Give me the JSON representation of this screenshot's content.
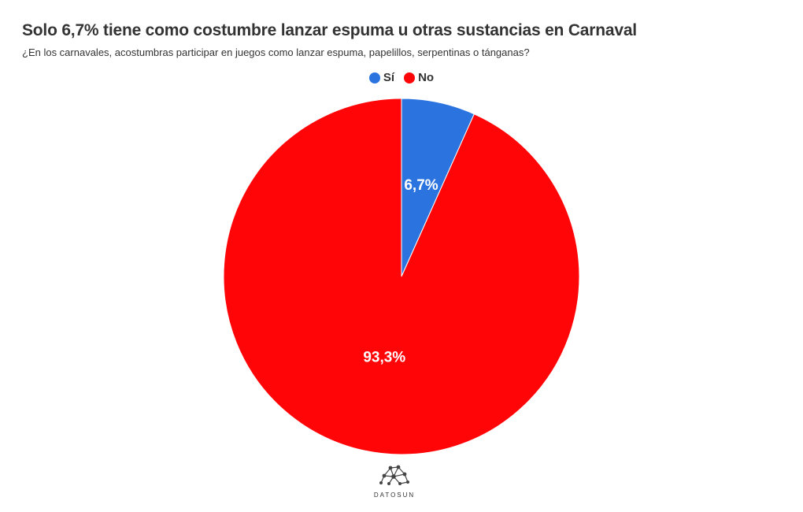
{
  "chart_data": {
    "type": "pie",
    "title": "Solo 6,7% tiene como costumbre lanzar espuma u otras sustancias en Carnaval",
    "subtitle": "¿En los carnavales, acostumbras participar en juegos como lanzar espuma, papelillos, serpentinas o tánganas?",
    "categories": [
      "Sí",
      "No"
    ],
    "values": [
      6.7,
      93.3
    ],
    "labels": [
      "6,7%",
      "93,3%"
    ],
    "colors": [
      "#2b74e0",
      "#ff0508"
    ],
    "legend": "top-center"
  },
  "branding": {
    "logo_text": "DATOSUN"
  }
}
